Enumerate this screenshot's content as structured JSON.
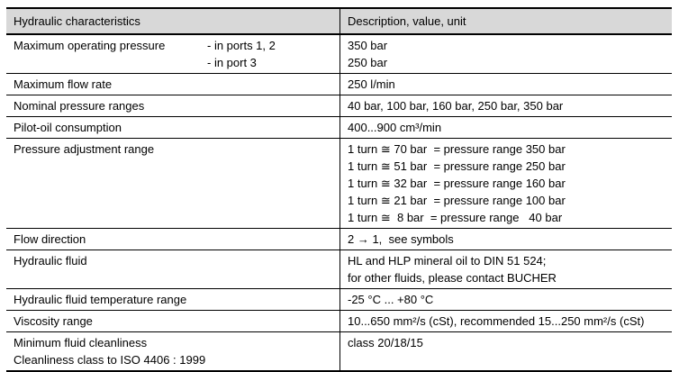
{
  "colors": {
    "header_bg": "#d8d8d8",
    "border": "#000000",
    "text": "#000000"
  },
  "table": {
    "header": {
      "characteristics": "Hydraulic characteristics",
      "description": "Description, value, unit"
    },
    "rows": [
      {
        "label": "Maximum operating pressure",
        "sublabels": [
          "- in ports 1, 2",
          "- in port 3"
        ],
        "values": [
          "350 bar",
          "250 bar"
        ]
      },
      {
        "label": "Maximum flow rate",
        "values": [
          "250 l/min"
        ]
      },
      {
        "label": "Nominal pressure ranges",
        "values": [
          "40 bar, 100 bar, 160 bar, 250 bar, 350 bar"
        ]
      },
      {
        "label": "Pilot-oil consumption",
        "values": [
          "400...900 cm³/min"
        ]
      },
      {
        "label": "Pressure adjustment range",
        "values": [
          "1 turn ≅ 70 bar  = pressure range 350 bar",
          "1 turn ≅ 51 bar  = pressure range 250 bar",
          "1 turn ≅ 32 bar  = pressure range 160 bar",
          "1 turn ≅ 21 bar  = pressure range 100 bar",
          "1 turn ≅  8 bar  = pressure range   40 bar"
        ]
      },
      {
        "label": "Flow direction",
        "values": [
          "2 → 1,  see symbols"
        ]
      },
      {
        "label": "Hydraulic fluid",
        "values": [
          "HL and HLP mineral oil to DIN 51 524;",
          "for other fluids, please contact BUCHER"
        ]
      },
      {
        "label": "Hydraulic fluid temperature range",
        "values": [
          "-25 °C ... +80 °C"
        ]
      },
      {
        "label": "Viscosity range",
        "values": [
          "10...650 mm²/s (cSt), recommended 15...250 mm²/s (cSt)"
        ]
      },
      {
        "label_lines": [
          "Minimum fluid cleanliness",
          "Cleanliness class to ISO 4406 : 1999"
        ],
        "values": [
          "class 20/18/15"
        ]
      }
    ]
  }
}
